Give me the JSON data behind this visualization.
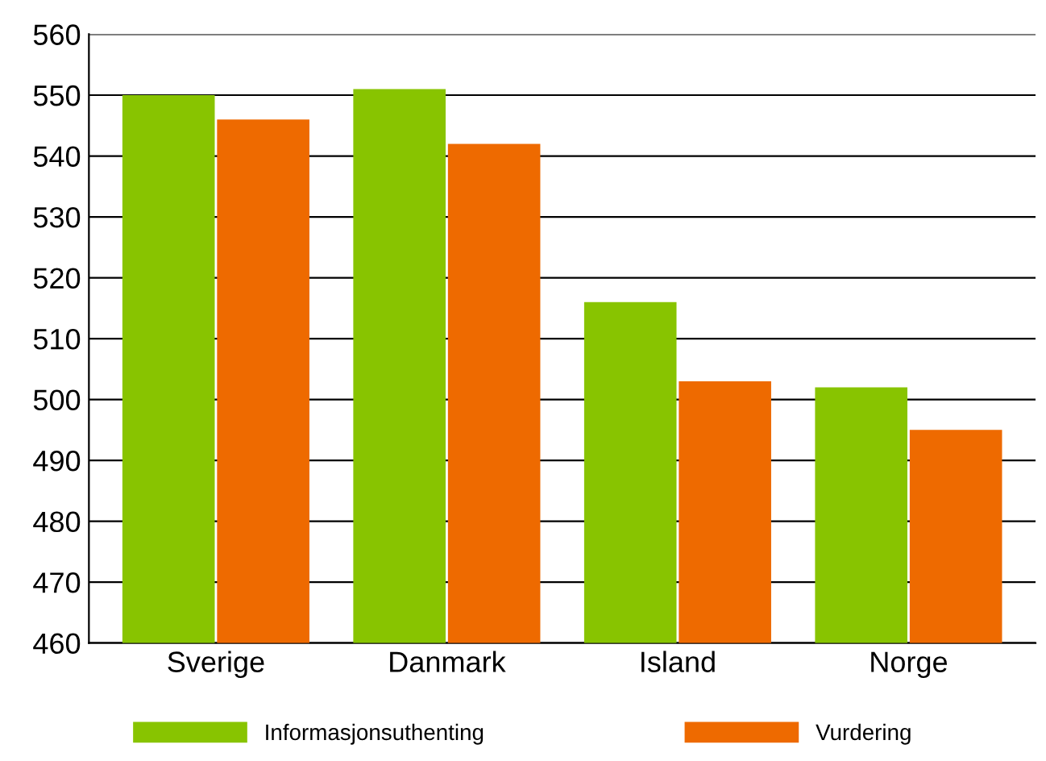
{
  "chart_data": {
    "type": "bar",
    "categories": [
      "Sverige",
      "Danmark",
      "Island",
      "Norge"
    ],
    "series": [
      {
        "name": "Informasjonsuthenting",
        "color": "#88c400",
        "values": [
          550,
          551,
          516,
          502
        ]
      },
      {
        "name": "Vurdering",
        "color": "#ee6a00",
        "values": [
          546,
          542,
          503,
          495
        ]
      }
    ],
    "ylim": [
      460,
      560
    ],
    "yticks": [
      460,
      470,
      480,
      490,
      500,
      510,
      520,
      530,
      540,
      550,
      560
    ],
    "grid": "y",
    "legend": "bottom"
  }
}
